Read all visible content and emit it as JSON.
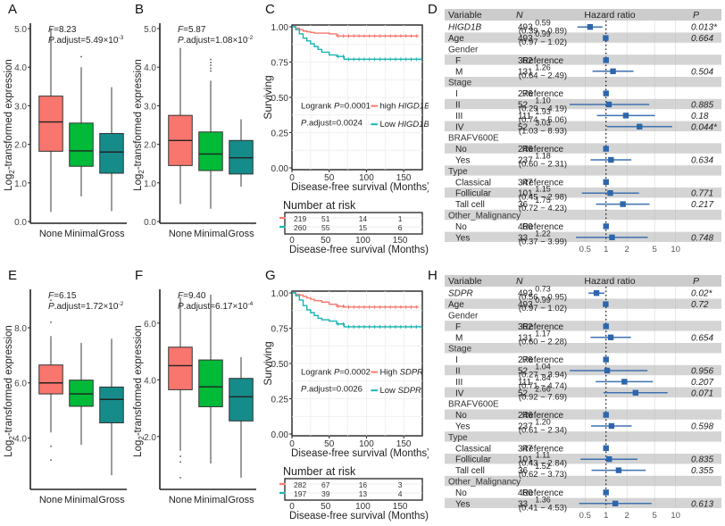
{
  "chart_data": [
    {
      "panel": "A",
      "type": "box",
      "ylabel": "Log2-transformed expression",
      "ylabel_base": "Log",
      "ylabel_sub": "2",
      "ylabel_rest": "-transformed expression",
      "ylim": [
        0,
        5
      ],
      "yticks": [
        0,
        1,
        2,
        3,
        4,
        5
      ],
      "ytick_labels": [
        "0.0",
        "1.0",
        "2.0",
        "3.0",
        "4.0",
        "5.0"
      ],
      "categories": [
        "None",
        "Minimal",
        "Gross"
      ],
      "colors": [
        "#F8766D",
        "#00BA38",
        "#158B8A"
      ],
      "boxes": [
        {
          "min": 0.25,
          "q1": 1.82,
          "median": 2.58,
          "q3": 3.25,
          "max": 5.0,
          "outliers": []
        },
        {
          "min": 0.65,
          "q1": 1.43,
          "median": 1.83,
          "q3": 2.55,
          "max": 4.0,
          "outliers": [
            4.27
          ]
        },
        {
          "min": 0.27,
          "q1": 1.25,
          "median": 1.8,
          "q3": 2.28,
          "max": 3.48,
          "outliers": []
        }
      ],
      "stat_F": "F=8.23",
      "stat_F_label": "F",
      "stat_F_value": "=8.23",
      "stat_p_label": "P",
      "stat_p_text": ".adjust=5.49×10",
      "stat_p_exp": "-3"
    },
    {
      "panel": "B",
      "type": "box",
      "ylabel_base": "Log",
      "ylabel_sub": "2",
      "ylabel_rest": "-transformed expression",
      "ylim": [
        0,
        5
      ],
      "yticks": [
        0,
        1,
        2,
        3,
        4,
        5
      ],
      "ytick_labels": [
        "0.0",
        "1.0",
        "2.0",
        "3.0",
        "4.0",
        "5.0"
      ],
      "categories": [
        "None",
        "Minimal",
        "Gross"
      ],
      "colors": [
        "#F8766D",
        "#00BA38",
        "#158B8A"
      ],
      "boxes": [
        {
          "min": 0.45,
          "q1": 1.45,
          "median": 2.1,
          "q3": 2.75,
          "max": 4.5,
          "outliers": []
        },
        {
          "min": 0.33,
          "q1": 1.32,
          "median": 1.75,
          "q3": 2.32,
          "max": 3.65,
          "outliers": [
            3.9,
            3.97,
            4.05,
            4.12,
            4.2
          ]
        },
        {
          "min": 0.9,
          "q1": 1.23,
          "median": 1.65,
          "q3": 2.1,
          "max": 2.65,
          "outliers": []
        }
      ],
      "stat_F_label": "F",
      "stat_F_value": "=5.87",
      "stat_p_label": "P",
      "stat_p_text": ".adjust=1.08×10",
      "stat_p_exp": "-2"
    },
    {
      "panel": "C",
      "type": "line",
      "subtype": "kaplan-meier",
      "ylabel": "Surviving",
      "xlabel": "Disease-free survival (Months)",
      "xlim": [
        0,
        175
      ],
      "ylim": [
        0,
        1.0
      ],
      "xticks": [
        0,
        50,
        100,
        150
      ],
      "yticks": [
        0,
        0.25,
        0.5,
        0.75,
        1.0
      ],
      "ytick_labels": [
        "0.00",
        "0.25",
        "0.50",
        "0.75",
        "1.00"
      ],
      "annotation_logrank_pre": "Logrank ",
      "annotation_logrank_p": "P",
      "annotation_logrank_val": "=0.0001",
      "annotation_padj_p": "P",
      "annotation_padj_val": ".adjust=0.0024",
      "series": [
        {
          "name": "high HIGD1B",
          "prefix": "high ",
          "gene": "HIGD1B",
          "color": "#F8766D",
          "x": [
            0,
            5,
            10,
            15,
            20,
            25,
            30,
            40,
            50,
            60,
            70,
            100,
            150,
            170
          ],
          "y": [
            1.0,
            0.99,
            0.98,
            0.97,
            0.965,
            0.96,
            0.955,
            0.955,
            0.95,
            0.935,
            0.935,
            0.935,
            0.935,
            0.935
          ]
        },
        {
          "name": "Low HIGD1B",
          "prefix": "Low ",
          "gene": "HIGD1B",
          "color": "#19B4B4",
          "x": [
            0,
            5,
            10,
            15,
            20,
            25,
            30,
            35,
            40,
            50,
            60,
            70,
            100,
            150,
            175
          ],
          "y": [
            1.0,
            0.98,
            0.95,
            0.92,
            0.9,
            0.88,
            0.86,
            0.84,
            0.82,
            0.8,
            0.79,
            0.77,
            0.77,
            0.77,
            0.77
          ]
        }
      ],
      "risk_table": {
        "title": "Number at risk",
        "xlabel": "Disease-free survival (Months)",
        "xticks": [
          0,
          50,
          100,
          150
        ],
        "rows": [
          {
            "color": "#F8766D",
            "values": [
              "219",
              "51",
              "14",
              "1"
            ]
          },
          {
            "color": "#19B4B4",
            "values": [
              "260",
              "55",
              "15",
              "6"
            ]
          }
        ]
      }
    },
    {
      "panel": "D",
      "type": "forest",
      "headers": {
        "variable": "Variable",
        "n": "N",
        "hr": "Hazard ratio",
        "p": "P"
      },
      "xscale": "log",
      "xticks": [
        0.5,
        1,
        2,
        5,
        10
      ],
      "xtick_labels": [
        "0.5",
        "1",
        "2",
        "5",
        "10"
      ],
      "xlim": [
        0.3,
        14
      ],
      "rows": [
        {
          "label": "HIGD1B",
          "italic": true,
          "indent": false,
          "n": "493",
          "hr": "0.59",
          "ci": "(0.39 − 0.89)",
          "est": 0.59,
          "lo": 0.39,
          "hi": 0.89,
          "p": "0.013*",
          "shade": false
        },
        {
          "label": "Age",
          "indent": false,
          "n": "493",
          "hr": "0.99",
          "ci": "(0.97 − 1.02)",
          "est": 0.99,
          "lo": 0.97,
          "hi": 1.02,
          "p": "0.664",
          "shade": true
        },
        {
          "label": "Gender",
          "group": true,
          "shade": false
        },
        {
          "label": "F",
          "indent": true,
          "n": "362",
          "ref": "Reference",
          "est": 1,
          "p": "",
          "shade": true
        },
        {
          "label": "M",
          "indent": true,
          "n": "131",
          "hr": "1.26",
          "ci": "(0.64 − 2.49)",
          "est": 1.26,
          "lo": 0.64,
          "hi": 2.49,
          "p": "0.504",
          "shade": false
        },
        {
          "label": "Stage",
          "group": true,
          "shade": true
        },
        {
          "label": "I",
          "indent": true,
          "n": "276",
          "ref": "Reference",
          "est": 1,
          "p": "",
          "shade": false
        },
        {
          "label": "II",
          "indent": true,
          "n": "52",
          "hr": "1.10",
          "ci": "(0.29 − 4.19)",
          "est": 1.1,
          "lo": 0.29,
          "hi": 4.19,
          "p": "0.885",
          "shade": true
        },
        {
          "label": "III",
          "indent": true,
          "n": "111",
          "hr": "1.93",
          "ci": "(0.74 − 5.06)",
          "est": 1.93,
          "lo": 0.74,
          "hi": 5.06,
          "p": "0.18",
          "shade": false
        },
        {
          "label": "IV",
          "indent": true,
          "n": "52",
          "hr": "3.03",
          "ci": "(1.03 − 8.93)",
          "est": 3.03,
          "lo": 1.03,
          "hi": 8.93,
          "p": "0.044*",
          "shade": true
        },
        {
          "label": "BRAFV600E",
          "group": true,
          "shade": false
        },
        {
          "label": "No",
          "indent": true,
          "n": "246",
          "ref": "Reference",
          "est": 1,
          "p": "",
          "shade": true
        },
        {
          "label": "Yes",
          "indent": true,
          "n": "237",
          "hr": "1.18",
          "ci": "(0.60 − 2.31)",
          "est": 1.18,
          "lo": 0.6,
          "hi": 2.31,
          "p": "0.634",
          "shade": false
        },
        {
          "label": "Type",
          "group": true,
          "shade": true
        },
        {
          "label": "Classical",
          "indent": true,
          "n": "347",
          "ref": "Reference",
          "est": 1,
          "p": "",
          "shade": false
        },
        {
          "label": "Follicular",
          "indent": true,
          "n": "101",
          "hr": "1.15",
          "ci": "(0.45 − 2.98)",
          "est": 1.15,
          "lo": 0.45,
          "hi": 2.98,
          "p": "0.771",
          "shade": true
        },
        {
          "label": "Tall cell",
          "indent": true,
          "n": "36",
          "hr": "1.75",
          "ci": "(0.72 − 4.23)",
          "est": 1.75,
          "lo": 0.72,
          "hi": 4.23,
          "p": "0.217",
          "shade": false
        },
        {
          "label": "Other_Malignancy",
          "group": true,
          "shade": true
        },
        {
          "label": "No",
          "indent": true,
          "n": "460",
          "ref": "Reference",
          "est": 1,
          "p": "",
          "shade": false
        },
        {
          "label": "Yes",
          "indent": true,
          "n": "33",
          "hr": "1.22",
          "ci": "(0.37 − 3.99)",
          "est": 1.22,
          "lo": 0.37,
          "hi": 3.99,
          "p": "0.748",
          "shade": true
        }
      ]
    },
    {
      "panel": "E",
      "type": "box",
      "ylabel_base": "Log",
      "ylabel_sub": "2",
      "ylabel_rest": "-transformed expression",
      "ylim": [
        2.2,
        9.2
      ],
      "yticks": [
        4,
        6,
        8
      ],
      "ytick_labels": [
        "4.0",
        "6.0",
        "8.0"
      ],
      "categories": [
        "None",
        "Minimal",
        "Gross"
      ],
      "colors": [
        "#F8766D",
        "#00BA38",
        "#158B8A"
      ],
      "boxes": [
        {
          "min": 4.2,
          "q1": 5.6,
          "median": 6.0,
          "q3": 6.65,
          "max": 7.7,
          "outliers": [
            3.7,
            3.2,
            8.2,
            9.0
          ]
        },
        {
          "min": 3.75,
          "q1": 5.15,
          "median": 5.6,
          "q3": 6.1,
          "max": 7.45,
          "outliers": []
        },
        {
          "min": 2.65,
          "q1": 4.55,
          "median": 5.4,
          "q3": 5.85,
          "max": 7.6,
          "outliers": []
        }
      ],
      "stat_F_label": "F",
      "stat_F_value": "=6.15",
      "stat_p_label": "P",
      "stat_p_text": ".adjust=1.72×10",
      "stat_p_exp": "-2"
    },
    {
      "panel": "F",
      "type": "box",
      "ylabel_base": "Log",
      "ylabel_sub": "2",
      "ylabel_rest": "-transformed expression",
      "ylim": [
        0.2,
        7.0
      ],
      "yticks": [
        2,
        4,
        6
      ],
      "ytick_labels": [
        "2.0",
        "4.0",
        "6.0"
      ],
      "categories": [
        "None",
        "Minimal",
        "Gross"
      ],
      "colors": [
        "#F8766D",
        "#00BA38",
        "#158B8A"
      ],
      "boxes": [
        {
          "min": 1.5,
          "q1": 3.65,
          "median": 4.5,
          "q3": 5.15,
          "max": 6.9,
          "outliers": [
            1.3,
            1.1,
            0.55
          ]
        },
        {
          "min": 1.05,
          "q1": 3.05,
          "median": 3.75,
          "q3": 4.7,
          "max": 7.0,
          "outliers": []
        },
        {
          "min": 0.55,
          "q1": 2.55,
          "median": 3.4,
          "q3": 4.05,
          "max": 4.8,
          "outliers": []
        }
      ],
      "stat_F_label": "F",
      "stat_F_value": "=9.40",
      "stat_p_label": "P",
      "stat_p_text": ".adjust=6.17×10",
      "stat_p_exp": "-4"
    },
    {
      "panel": "G",
      "type": "line",
      "subtype": "kaplan-meier",
      "ylabel": "Surviving",
      "xlabel": "Disease-free survival (Months)",
      "xlim": [
        0,
        175
      ],
      "ylim": [
        0,
        1.0
      ],
      "xticks": [
        0,
        50,
        100,
        150
      ],
      "yticks": [
        0,
        0.25,
        0.5,
        0.75,
        1.0
      ],
      "ytick_labels": [
        "0.00",
        "0.25",
        "0.50",
        "0.75",
        "1.00"
      ],
      "annotation_logrank_pre": "Logrank ",
      "annotation_logrank_p": "P",
      "annotation_logrank_val": "=0.0002",
      "annotation_padj_p": "P",
      "annotation_padj_val": ".adjust=0.0026",
      "series": [
        {
          "name": "High SDPR",
          "prefix": "High ",
          "gene": "SDPR",
          "color": "#F8766D",
          "x": [
            0,
            5,
            10,
            15,
            20,
            25,
            30,
            40,
            50,
            60,
            70,
            100,
            150,
            170
          ],
          "y": [
            1.0,
            0.99,
            0.985,
            0.975,
            0.965,
            0.955,
            0.945,
            0.935,
            0.92,
            0.905,
            0.9,
            0.9,
            0.9,
            0.9
          ]
        },
        {
          "name": "Low SDPR",
          "prefix": "Low ",
          "gene": "SDPR",
          "color": "#19B4B4",
          "x": [
            0,
            5,
            10,
            15,
            20,
            25,
            30,
            35,
            40,
            50,
            60,
            70,
            100,
            150,
            175
          ],
          "y": [
            1.0,
            0.98,
            0.95,
            0.91,
            0.88,
            0.86,
            0.84,
            0.82,
            0.81,
            0.8,
            0.78,
            0.76,
            0.76,
            0.76,
            0.76
          ]
        }
      ],
      "risk_table": {
        "title": "Number at risk",
        "xlabel": "Disease-free survival (Months)",
        "xticks": [
          0,
          50,
          100,
          150
        ],
        "rows": [
          {
            "color": "#F8766D",
            "values": [
              "282",
              "67",
              "16",
              "3"
            ]
          },
          {
            "color": "#19B4B4",
            "values": [
              "197",
              "39",
              "13",
              "4"
            ]
          }
        ]
      }
    },
    {
      "panel": "H",
      "type": "forest",
      "headers": {
        "variable": "Variable",
        "n": "N",
        "hr": "Hazard ratio",
        "p": "P"
      },
      "xscale": "log",
      "xticks": [
        0.5,
        1,
        2,
        5,
        10
      ],
      "xtick_labels": [
        "0.5",
        "1",
        "2",
        "5",
        "10"
      ],
      "xlim": [
        0.3,
        14
      ],
      "rows": [
        {
          "label": "SDPR",
          "italic": true,
          "indent": false,
          "n": "493",
          "hr": "0.73",
          "ci": "(0.56 − 0.95)",
          "est": 0.73,
          "lo": 0.56,
          "hi": 0.95,
          "p": "0.02*",
          "shade": false
        },
        {
          "label": "Age",
          "indent": false,
          "n": "493",
          "hr": "0.99",
          "ci": "(0.97 − 1.02)",
          "est": 0.99,
          "lo": 0.97,
          "hi": 1.02,
          "p": "0.72",
          "shade": true
        },
        {
          "label": "Gender",
          "group": true,
          "shade": false
        },
        {
          "label": "F",
          "indent": true,
          "n": "362",
          "ref": "Reference",
          "est": 1,
          "p": "",
          "shade": true
        },
        {
          "label": "M",
          "indent": true,
          "n": "131",
          "hr": "1.17",
          "ci": "(0.60 − 2.28)",
          "est": 1.17,
          "lo": 0.6,
          "hi": 2.28,
          "p": "0.654",
          "shade": false
        },
        {
          "label": "Stage",
          "group": true,
          "shade": true
        },
        {
          "label": "I",
          "indent": true,
          "n": "276",
          "ref": "Reference",
          "est": 1,
          "p": "",
          "shade": false
        },
        {
          "label": "II",
          "indent": true,
          "n": "52",
          "hr": "1.04",
          "ci": "(0.27 − 3.94)",
          "est": 1.04,
          "lo": 0.27,
          "hi": 3.94,
          "p": "0.956",
          "shade": true
        },
        {
          "label": "III",
          "indent": true,
          "n": "111",
          "hr": "1.84",
          "ci": "(0.71 − 4.74)",
          "est": 1.84,
          "lo": 0.71,
          "hi": 4.74,
          "p": "0.207",
          "shade": false
        },
        {
          "label": "IV",
          "indent": true,
          "n": "52",
          "hr": "2.66",
          "ci": "(0.92 − 7.69)",
          "est": 2.66,
          "lo": 0.92,
          "hi": 7.69,
          "p": "0.071",
          "shade": true
        },
        {
          "label": "BRAFV600E",
          "group": true,
          "shade": false
        },
        {
          "label": "No",
          "indent": true,
          "n": "246",
          "ref": "Reference",
          "est": 1,
          "p": "",
          "shade": true
        },
        {
          "label": "Yes",
          "indent": true,
          "n": "237",
          "hr": "1.20",
          "ci": "(0.61 − 2.34)",
          "est": 1.2,
          "lo": 0.61,
          "hi": 2.34,
          "p": "0.598",
          "shade": false
        },
        {
          "label": "Type",
          "group": true,
          "shade": true
        },
        {
          "label": "Classical",
          "indent": true,
          "n": "347",
          "ref": "Reference",
          "est": 1,
          "p": "",
          "shade": false
        },
        {
          "label": "Follicular",
          "indent": true,
          "n": "101",
          "hr": "1.11",
          "ci": "(0.43 − 2.84)",
          "est": 1.11,
          "lo": 0.43,
          "hi": 2.84,
          "p": "0.835",
          "shade": true
        },
        {
          "label": "Tall cell",
          "indent": true,
          "n": "36",
          "hr": "1.52",
          "ci": "(0.62 − 3.73)",
          "est": 1.52,
          "lo": 0.62,
          "hi": 3.73,
          "p": "0.355",
          "shade": false
        },
        {
          "label": "Other_Malignancy",
          "group": true,
          "shade": true
        },
        {
          "label": "No",
          "indent": true,
          "n": "460",
          "ref": "Reference",
          "est": 1,
          "p": "",
          "shade": false
        },
        {
          "label": "Yes",
          "indent": true,
          "n": "33",
          "hr": "1.36",
          "ci": "(0.41 − 4.53)",
          "est": 1.36,
          "lo": 0.41,
          "hi": 4.53,
          "p": "0.613",
          "shade": true
        }
      ]
    }
  ],
  "panel_letters": [
    "A",
    "B",
    "C",
    "D",
    "E",
    "F",
    "G",
    "H"
  ]
}
